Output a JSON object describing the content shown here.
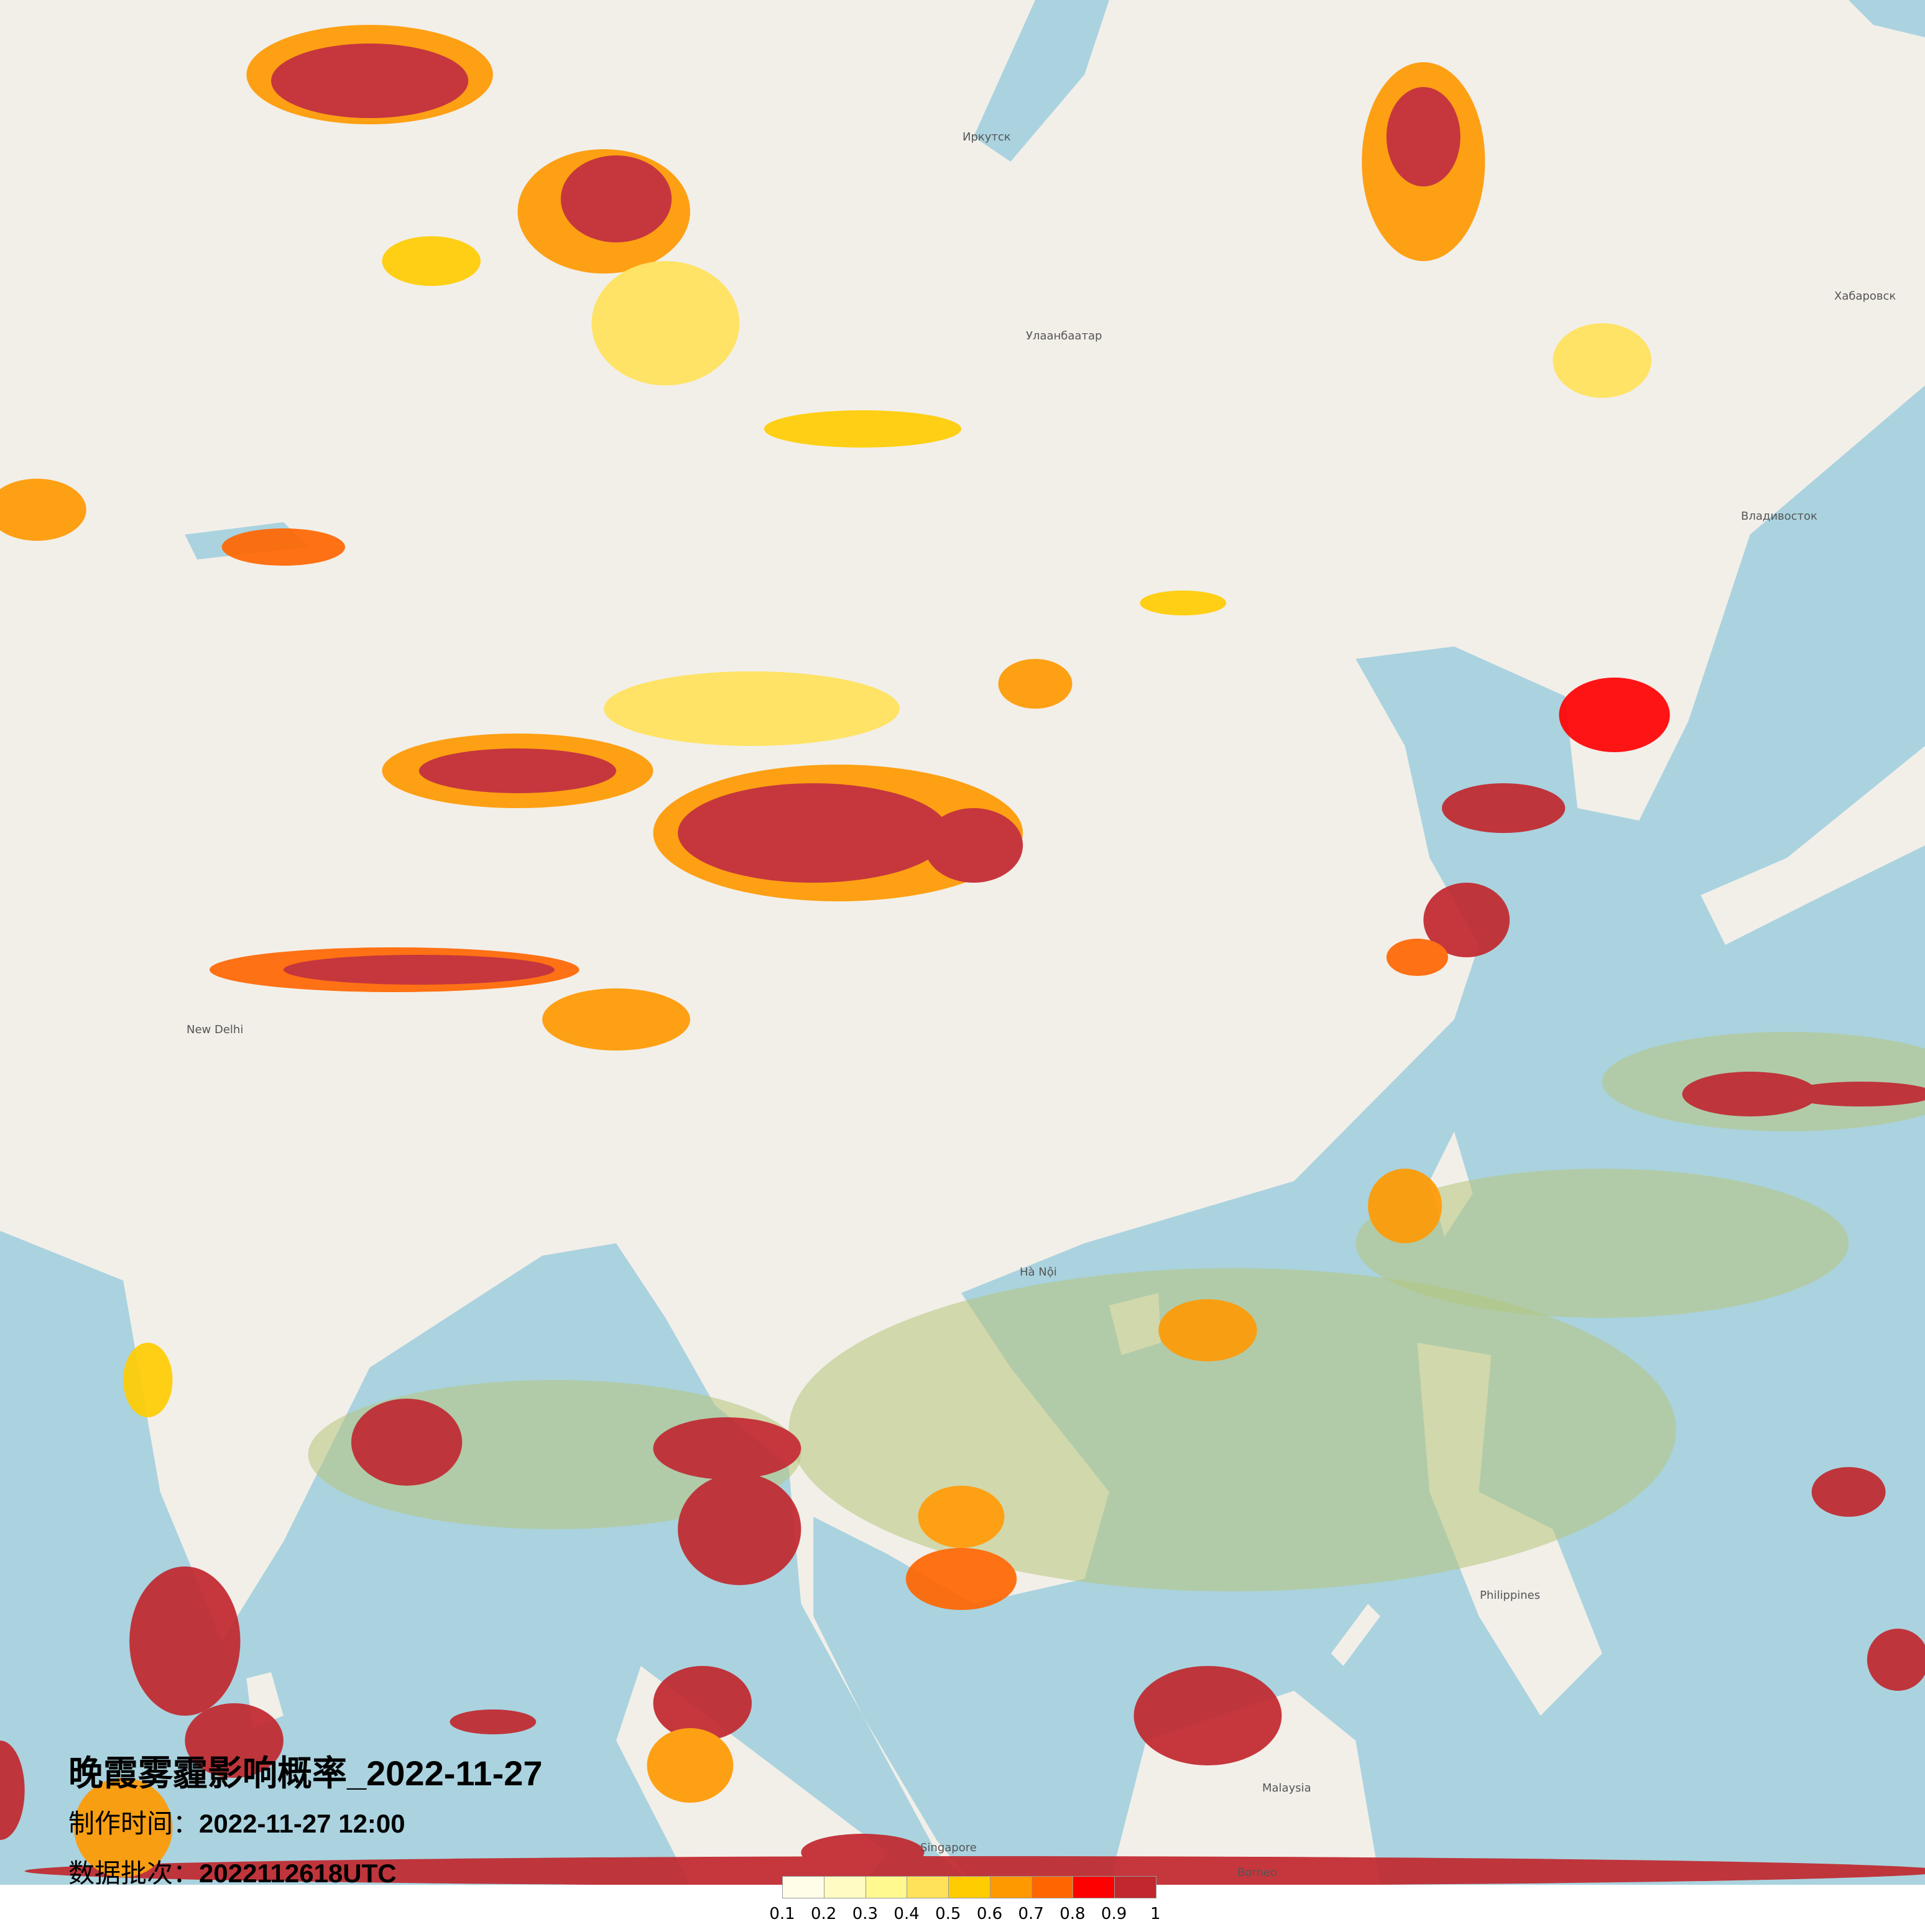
{
  "title": "晚霞雾霾影响概率_2022-11-27",
  "production_time": {
    "label": "制作时间：",
    "value": "2022-11-27 12:00"
  },
  "data_batch": {
    "label": "数据批次：",
    "value": "2022112618UTC"
  },
  "legend": {
    "ticks": [
      "0.1",
      "0.2",
      "0.3",
      "0.4",
      "0.5",
      "0.6",
      "0.7",
      "0.8",
      "0.9",
      "1"
    ],
    "colors": [
      "#fffde8",
      "#fffbc2",
      "#fff98f",
      "#ffe25a",
      "#ffcc00",
      "#ff9900",
      "#ff6600",
      "#ff0000",
      "#c1272d"
    ]
  },
  "map_colors": {
    "land": "#f2efe9",
    "sea": "#aad3df",
    "overlay_sea_tint": "#b5c47a"
  },
  "map_labels": [
    {
      "text": "Иркутск"
    },
    {
      "text": "Улаанбаатар"
    },
    {
      "text": "Хабаровск"
    },
    {
      "text": "Владивосток"
    },
    {
      "text": "New Delhi"
    },
    {
      "text": "Hà Nội"
    },
    {
      "text": "Singapore"
    },
    {
      "text": "Philippines"
    },
    {
      "text": "Malaysia"
    },
    {
      "text": "Borneo"
    }
  ]
}
